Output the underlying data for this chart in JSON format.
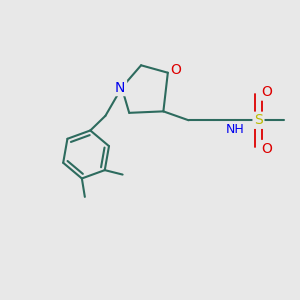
{
  "bg_color": "#e8e8e8",
  "bond_color": "#2d6b5e",
  "bond_width": 1.5,
  "atom_colors": {
    "O": "#dd0000",
    "N": "#0000ee",
    "S": "#bbbb00",
    "C": "#2d6b5e"
  },
  "font_size": 9,
  "fig_width": 3.0,
  "fig_height": 3.0,
  "xlim": [
    0,
    10
  ],
  "ylim": [
    0,
    10
  ]
}
